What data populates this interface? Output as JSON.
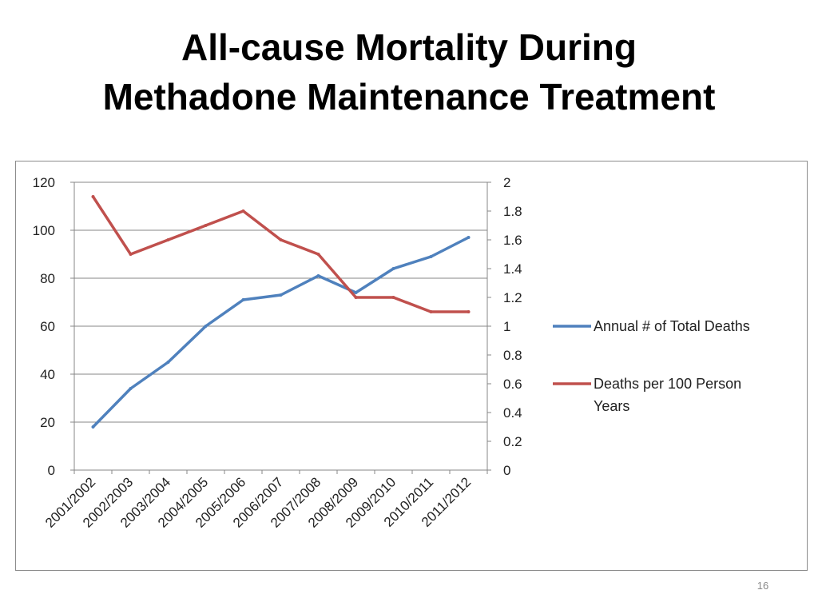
{
  "slide": {
    "title_line1": "All-cause Mortality During",
    "title_line2": "Methadone Maintenance Treatment",
    "page_number": "16"
  },
  "chart_data": {
    "type": "line",
    "title": "",
    "xlabel": "",
    "ylabel": "",
    "y2label": "",
    "categories": [
      "2001/2002",
      "2002/2003",
      "2003/2004",
      "2004/2005",
      "2005/2006",
      "2006/2007",
      "2007/2008",
      "2008/2009",
      "2009/2010",
      "2010/2011",
      "2011/2012"
    ],
    "ylim": [
      0,
      120
    ],
    "yticks": [
      "0",
      "20",
      "40",
      "60",
      "80",
      "100",
      "120"
    ],
    "y2lim": [
      0,
      2
    ],
    "y2ticks": [
      "0",
      "0.2",
      "0.4",
      "0.6",
      "0.8",
      "1",
      "1.2",
      "1.4",
      "1.6",
      "1.8",
      "2"
    ],
    "grid": true,
    "legend_position": "right",
    "series": [
      {
        "name": "Annual # of Total Deaths",
        "axis": "left",
        "color": "#4f81bd",
        "values": [
          18,
          34,
          45,
          60,
          71,
          73,
          81,
          74,
          84,
          89,
          97
        ]
      },
      {
        "name": "Deaths per 100 Person Years",
        "name_lines": [
          "Deaths per 100 Person",
          "Years"
        ],
        "axis": "right",
        "color": "#c0504d",
        "values": [
          1.9,
          1.5,
          1.6,
          1.7,
          1.8,
          1.6,
          1.5,
          1.2,
          1.2,
          1.1,
          1.1
        ]
      }
    ]
  }
}
